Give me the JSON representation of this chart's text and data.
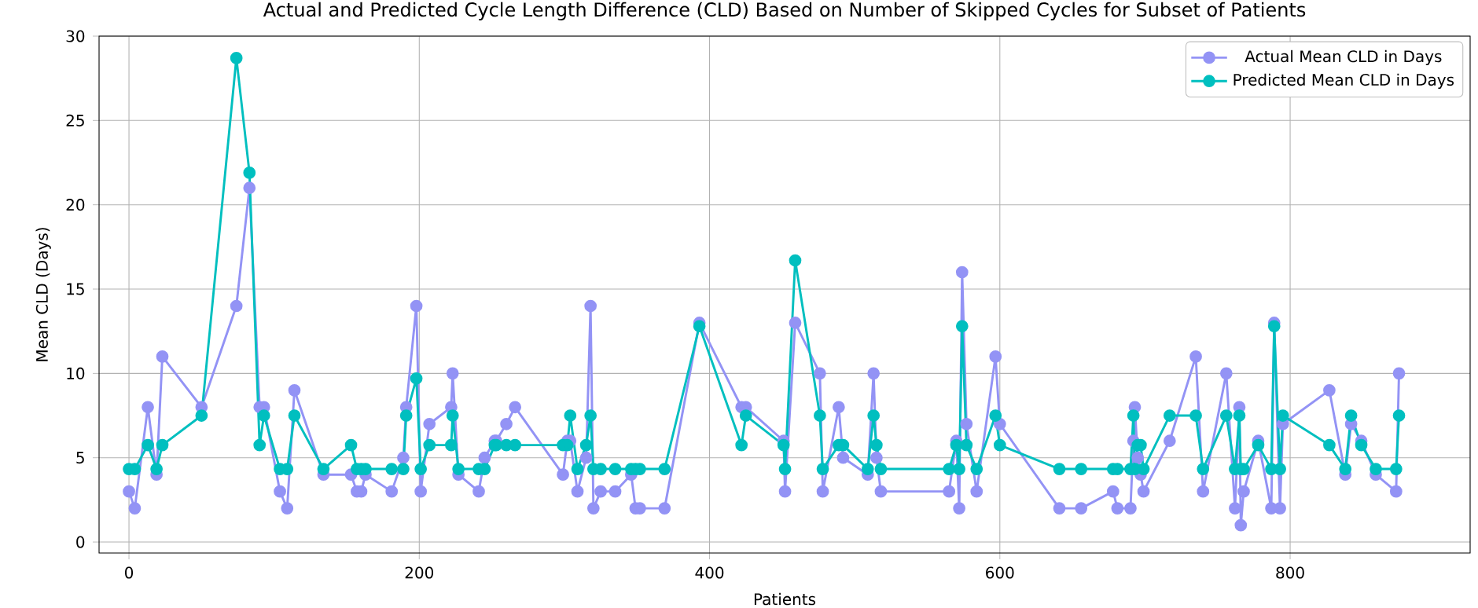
{
  "chart_data": {
    "type": "line",
    "title": "Actual and Predicted Cycle Length Difference (CLD) Based on Number of Skipped Cycles for Subset of Patients",
    "xlabel": "Patients",
    "ylabel": "Mean CLD (Days)",
    "x": [
      0,
      4,
      13,
      19,
      23,
      50,
      74,
      83,
      90,
      93,
      104,
      109,
      114,
      134,
      153,
      157,
      160,
      163,
      181,
      189,
      191,
      198,
      201,
      207,
      222,
      223,
      227,
      241,
      245,
      252,
      253,
      260,
      266,
      299,
      302,
      304,
      309,
      315,
      318,
      320,
      325,
      335,
      346,
      349,
      352,
      369,
      393,
      422,
      425,
      451,
      452,
      459,
      476,
      478,
      489,
      492,
      509,
      513,
      515,
      518,
      565,
      570,
      572,
      574,
      577,
      584,
      597,
      600,
      641,
      656,
      678,
      681,
      690,
      692,
      693,
      695,
      697,
      699,
      717,
      735,
      740,
      756,
      762,
      765,
      766,
      768,
      778,
      787,
      789,
      793,
      795,
      827,
      838,
      842,
      849,
      859,
      873,
      875
    ],
    "series": [
      {
        "name": "Actual Mean CLD in Days",
        "color": "#9393f5",
        "values": [
          3,
          2,
          8,
          4,
          11,
          8,
          14,
          21,
          8,
          8,
          3,
          2,
          9,
          4,
          4,
          3,
          3,
          4,
          3,
          5,
          8,
          14,
          3,
          7,
          8,
          10,
          4,
          3,
          5,
          6,
          6,
          7,
          8,
          4,
          6,
          6,
          3,
          5,
          14,
          2,
          3,
          3,
          4,
          2,
          2,
          2,
          13,
          8,
          8,
          6,
          3,
          13,
          10,
          3,
          8,
          5,
          4,
          10,
          5,
          3,
          3,
          6,
          2,
          16,
          7,
          3,
          11,
          7,
          2,
          2,
          3,
          2,
          2,
          6,
          8,
          5,
          4,
          3,
          6,
          11,
          3,
          10,
          2,
          8,
          1,
          3,
          6,
          2,
          13,
          2,
          7,
          9,
          4,
          7,
          6,
          4,
          3,
          10
        ]
      },
      {
        "name": "Predicted Mean CLD in Days",
        "color": "#00bfbf",
        "values": [
          4.33,
          4.33,
          5.75,
          4.33,
          5.75,
          7.5,
          28.7,
          21.9,
          5.75,
          7.5,
          4.33,
          4.33,
          7.5,
          4.33,
          5.75,
          4.33,
          4.33,
          4.33,
          4.33,
          4.33,
          7.5,
          9.7,
          4.33,
          5.75,
          5.75,
          7.5,
          4.33,
          4.33,
          4.33,
          5.75,
          5.75,
          5.75,
          5.75,
          5.75,
          5.75,
          7.5,
          4.33,
          5.75,
          7.5,
          4.33,
          4.33,
          4.33,
          4.33,
          4.33,
          4.33,
          4.33,
          12.8,
          5.75,
          7.5,
          5.75,
          4.33,
          16.7,
          7.5,
          4.33,
          5.75,
          5.75,
          4.33,
          7.5,
          5.75,
          4.33,
          4.33,
          5.75,
          4.33,
          12.8,
          5.75,
          4.33,
          7.5,
          5.75,
          4.33,
          4.33,
          4.33,
          4.33,
          4.33,
          7.5,
          4.33,
          5.75,
          5.75,
          4.33,
          7.5,
          7.5,
          4.33,
          7.5,
          4.33,
          7.5,
          4.33,
          4.33,
          5.75,
          4.33,
          12.8,
          4.33,
          7.5,
          5.75,
          4.33,
          7.5,
          5.75,
          4.33,
          4.33,
          7.5
        ]
      }
    ],
    "xlim": [
      -20.6,
      924
    ],
    "ylim": [
      -0.65,
      30
    ],
    "xticks": [
      0,
      200,
      400,
      600,
      800
    ],
    "yticks": [
      0,
      5,
      10,
      15,
      20,
      25,
      30
    ],
    "grid": true,
    "legend": "top right",
    "marker": "circle",
    "line_style": "solid"
  }
}
